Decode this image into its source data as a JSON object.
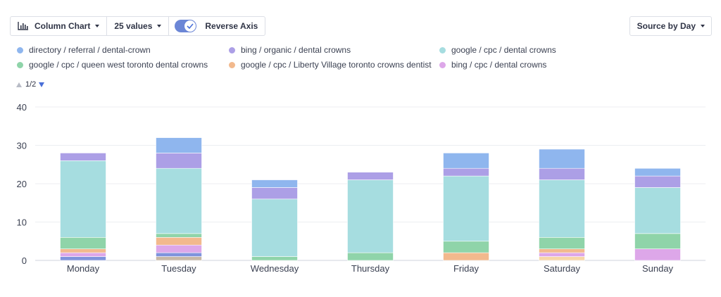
{
  "toolbar": {
    "chart_type_label": "Column Chart",
    "values_label": "25 values",
    "reverse_axis_label": "Reverse Axis",
    "reverse_axis_on": true
  },
  "source_button_label": "Source by Day",
  "pager": {
    "label": "1/2"
  },
  "legend": [
    {
      "name": "directory / referral / dental-crown",
      "color": "#8fb6ee"
    },
    {
      "name": "bing / organic / dental crowns",
      "color": "#ac9fe6"
    },
    {
      "name": "google / cpc / dental crowns",
      "color": "#a6dde0"
    },
    {
      "name": "google / cpc / queen west toronto dental crowns",
      "color": "#8fd4a9"
    },
    {
      "name": "google / cpc / Liberty Village toronto crowns dentist",
      "color": "#f2b98d"
    },
    {
      "name": "bing / cpc / dental crowns",
      "color": "#dda7e9"
    }
  ],
  "chart_data": {
    "type": "bar",
    "stacked": true,
    "categories": [
      "Monday",
      "Tuesday",
      "Wednesday",
      "Thursday",
      "Friday",
      "Saturday",
      "Sunday"
    ],
    "ylim": [
      0,
      40
    ],
    "yticks": [
      0,
      10,
      20,
      30,
      40
    ],
    "grid": true,
    "segments": [
      [
        {
          "value": 1,
          "color": "#7f93dc"
        },
        {
          "value": 1,
          "color": "#dda7e9"
        },
        {
          "value": 1,
          "color": "#f2b98d"
        },
        {
          "value": 3,
          "color": "#8fd4a9"
        },
        {
          "value": 20,
          "color": "#a6dde0"
        },
        {
          "value": 2,
          "color": "#ac9fe6"
        }
      ],
      [
        {
          "value": 1,
          "color": "#c8b8a6"
        },
        {
          "value": 1,
          "color": "#7f93dc"
        },
        {
          "value": 2,
          "color": "#dda7e9"
        },
        {
          "value": 2,
          "color": "#f2b98d"
        },
        {
          "value": 1,
          "color": "#8fd4a9"
        },
        {
          "value": 17,
          "color": "#a6dde0"
        },
        {
          "value": 4,
          "color": "#ac9fe6"
        },
        {
          "value": 4,
          "color": "#8fb6ee"
        }
      ],
      [
        {
          "value": 1,
          "color": "#8fd4a9"
        },
        {
          "value": 15,
          "color": "#a6dde0"
        },
        {
          "value": 3,
          "color": "#ac9fe6"
        },
        {
          "value": 2,
          "color": "#8fb6ee"
        }
      ],
      [
        {
          "value": 2,
          "color": "#8fd4a9"
        },
        {
          "value": 19,
          "color": "#a6dde0"
        },
        {
          "value": 2,
          "color": "#ac9fe6"
        }
      ],
      [
        {
          "value": 2,
          "color": "#f2b98d"
        },
        {
          "value": 3,
          "color": "#8fd4a9"
        },
        {
          "value": 17,
          "color": "#a6dde0"
        },
        {
          "value": 2,
          "color": "#ac9fe6"
        },
        {
          "value": 4,
          "color": "#8fb6ee"
        }
      ],
      [
        {
          "value": 1,
          "color": "#f7d6a8"
        },
        {
          "value": 1,
          "color": "#dda7e9"
        },
        {
          "value": 1,
          "color": "#f2b98d"
        },
        {
          "value": 3,
          "color": "#8fd4a9"
        },
        {
          "value": 15,
          "color": "#a6dde0"
        },
        {
          "value": 3,
          "color": "#ac9fe6"
        },
        {
          "value": 5,
          "color": "#8fb6ee"
        }
      ],
      [
        {
          "value": 3,
          "color": "#dda7e9"
        },
        {
          "value": 4,
          "color": "#8fd4a9"
        },
        {
          "value": 12,
          "color": "#a6dde0"
        },
        {
          "value": 3,
          "color": "#ac9fe6"
        },
        {
          "value": 2,
          "color": "#8fb6ee"
        }
      ]
    ]
  }
}
